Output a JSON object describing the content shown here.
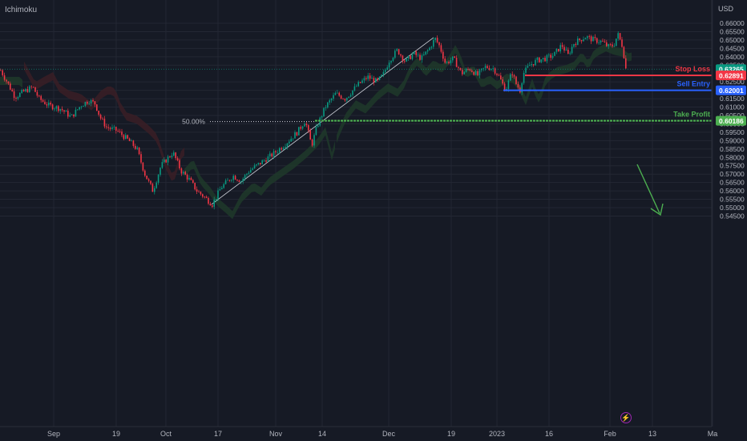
{
  "header": {
    "indicator": "Ichimoku",
    "currency": "USD"
  },
  "chart_data": {
    "type": "candlestick",
    "symbol_quote": "USD",
    "y_range": [
      0.543,
      0.661
    ],
    "y_ticks": [
      "0.66000",
      "0.65500",
      "0.65000",
      "0.64500",
      "0.64000",
      "0.63500",
      "0.62500",
      "0.62000",
      "0.61500",
      "0.61000",
      "0.60500",
      "0.60000",
      "0.59500",
      "0.59000",
      "0.58500",
      "0.58000",
      "0.57500",
      "0.57000",
      "0.56500",
      "0.56000",
      "0.55500",
      "0.55000",
      "0.54500"
    ],
    "x_labels": [
      "Sep",
      "19",
      "Oct",
      "17",
      "Nov",
      "14",
      "Dec",
      "19",
      "2023",
      "16",
      "Feb",
      "13",
      "Ma"
    ],
    "price_path": [
      [
        0,
        0.632
      ],
      [
        9,
        0.624
      ],
      [
        18,
        0.616
      ],
      [
        28,
        0.619
      ],
      [
        40,
        0.622
      ],
      [
        48,
        0.615
      ],
      [
        60,
        0.611
      ],
      [
        75,
        0.609
      ],
      [
        88,
        0.604
      ],
      [
        100,
        0.611
      ],
      [
        110,
        0.614
      ],
      [
        118,
        0.612
      ],
      [
        124,
        0.604
      ],
      [
        132,
        0.598
      ],
      [
        145,
        0.596
      ],
      [
        160,
        0.59
      ],
      [
        170,
        0.585
      ],
      [
        180,
        0.57
      ],
      [
        190,
        0.56
      ],
      [
        200,
        0.575
      ],
      [
        215,
        0.583
      ],
      [
        225,
        0.572
      ],
      [
        235,
        0.567
      ],
      [
        245,
        0.56
      ],
      [
        255,
        0.556
      ],
      [
        264,
        0.552
      ],
      [
        275,
        0.562
      ],
      [
        290,
        0.569
      ],
      [
        300,
        0.566
      ],
      [
        310,
        0.572
      ],
      [
        325,
        0.577
      ],
      [
        340,
        0.582
      ],
      [
        355,
        0.588
      ],
      [
        370,
        0.595
      ],
      [
        380,
        0.602
      ],
      [
        388,
        0.587
      ],
      [
        395,
        0.599
      ],
      [
        405,
        0.61
      ],
      [
        418,
        0.618
      ],
      [
        430,
        0.615
      ],
      [
        445,
        0.623
      ],
      [
        458,
        0.628
      ],
      [
        470,
        0.625
      ],
      [
        478,
        0.63
      ],
      [
        485,
        0.638
      ],
      [
        495,
        0.644
      ],
      [
        505,
        0.637
      ],
      [
        515,
        0.642
      ],
      [
        525,
        0.639
      ],
      [
        535,
        0.645
      ],
      [
        542,
        0.651
      ],
      [
        548,
        0.646
      ],
      [
        555,
        0.636
      ],
      [
        565,
        0.639
      ],
      [
        575,
        0.63
      ],
      [
        585,
        0.633
      ],
      [
        595,
        0.629
      ],
      [
        605,
        0.634
      ],
      [
        615,
        0.633
      ],
      [
        622,
        0.628
      ],
      [
        630,
        0.62
      ],
      [
        638,
        0.631
      ],
      [
        643,
        0.624
      ],
      [
        648,
        0.62
      ],
      [
        652,
        0.63
      ],
      [
        660,
        0.635
      ],
      [
        670,
        0.638
      ],
      [
        680,
        0.639
      ],
      [
        690,
        0.641
      ],
      [
        700,
        0.647
      ],
      [
        708,
        0.641
      ],
      [
        715,
        0.648
      ],
      [
        722,
        0.65
      ],
      [
        730,
        0.652
      ],
      [
        740,
        0.65
      ],
      [
        750,
        0.649
      ],
      [
        758,
        0.646
      ],
      [
        765,
        0.647
      ],
      [
        770,
        0.6535
      ],
      [
        776,
        0.646
      ],
      [
        780,
        0.633
      ]
    ],
    "levels": [
      {
        "name": "Stop Loss",
        "value": 0.62891,
        "price_text": "0.62891",
        "color": "#f23645"
      },
      {
        "name": "Sell Entry",
        "value": 0.62001,
        "price_text": "0.62001",
        "color": "#2962ff"
      },
      {
        "name": "Take Profit",
        "value": 0.60186,
        "price_text": "0.60186",
        "color": "#4caf50"
      }
    ],
    "current_price": {
      "value": 0.63265,
      "price_text": "0.63265",
      "color": "#089981"
    },
    "fib_label": "50.00%",
    "colors": {
      "up": "#089981",
      "down": "#f23645",
      "cloud_up": "#1e3a2a",
      "cloud_down": "#3a1f26",
      "grid": "#232733",
      "text": "#b2b5be"
    },
    "grid": true
  }
}
